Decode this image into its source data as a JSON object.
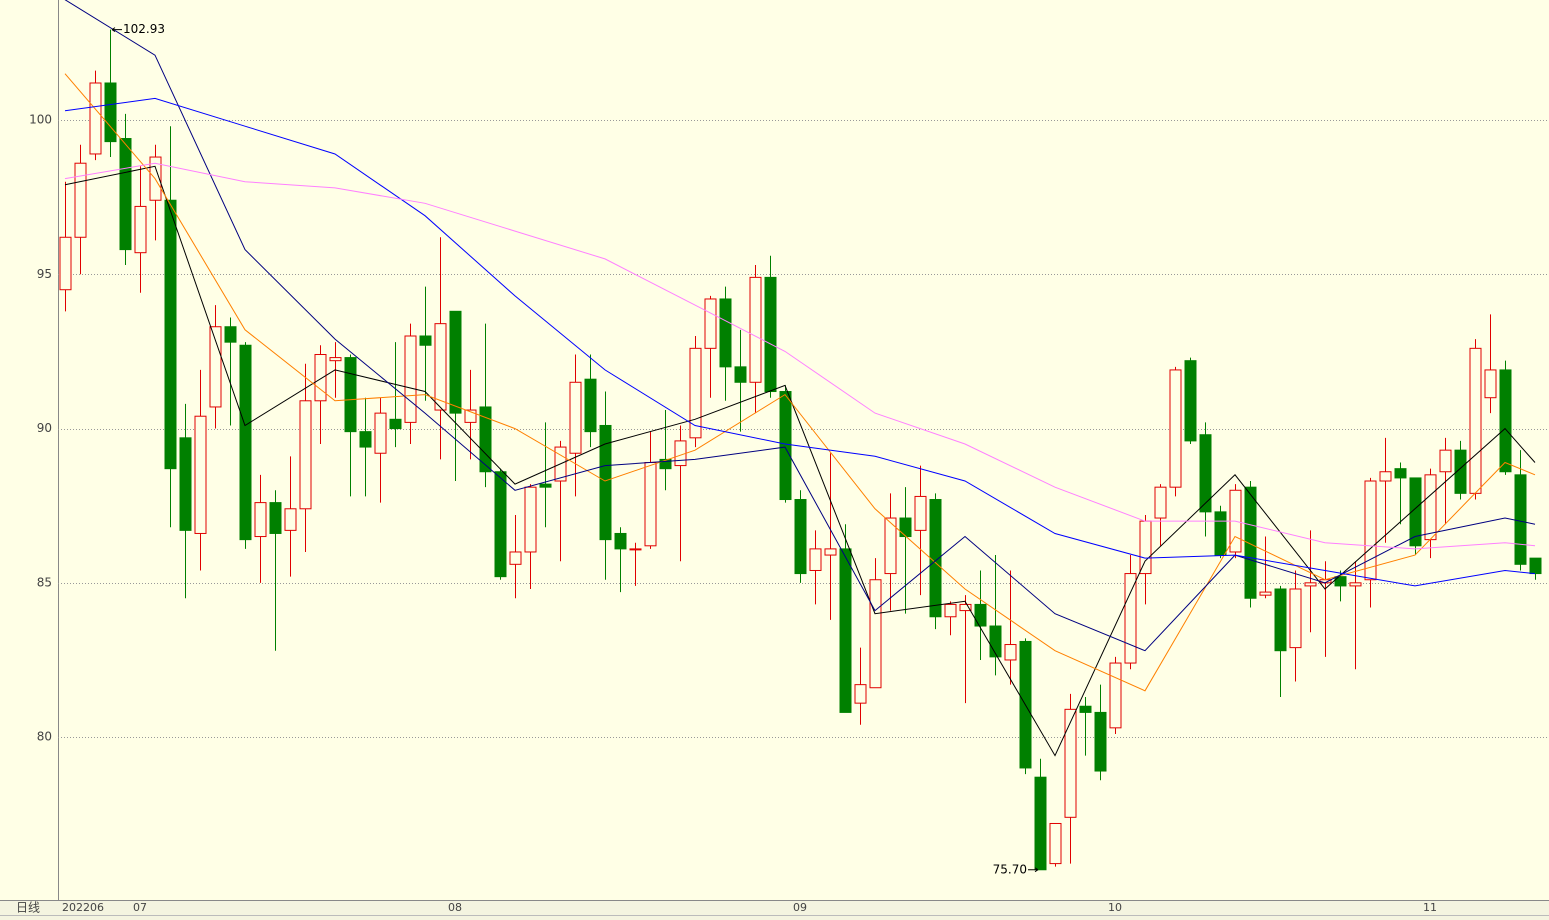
{
  "chart_data": {
    "type": "candlestick",
    "period_label": "日线",
    "categories": [
      "202206",
      null,
      null,
      null,
      null,
      "07",
      null,
      null,
      null,
      null,
      null,
      null,
      null,
      null,
      null,
      null,
      null,
      null,
      null,
      null,
      null,
      null,
      null,
      null,
      null,
      null,
      "08",
      null,
      null,
      null,
      null,
      null,
      null,
      null,
      null,
      null,
      null,
      null,
      null,
      null,
      null,
      null,
      null,
      null,
      null,
      null,
      null,
      null,
      null,
      "09",
      null,
      null,
      null,
      null,
      null,
      null,
      null,
      null,
      null,
      null,
      null,
      null,
      null,
      null,
      null,
      null,
      null,
      null,
      null,
      null,
      "10",
      null,
      null,
      null,
      null,
      null,
      null,
      null,
      null,
      null,
      null,
      null,
      null,
      null,
      null,
      null,
      null,
      null,
      null,
      null,
      null,
      "11",
      null,
      null,
      null,
      null,
      null,
      null,
      null
    ],
    "open": [
      94.5,
      96.2,
      98.9,
      101.2,
      99.4,
      95.7,
      97.4,
      97.4,
      89.7,
      86.6,
      90.7,
      93.3,
      92.7,
      86.5,
      87.6,
      86.7,
      87.4,
      90.9,
      92.2,
      92.3,
      89.9,
      89.2,
      90.3,
      90.2,
      93.0,
      90.6,
      93.8,
      90.2,
      90.7,
      88.6,
      85.6,
      86.0,
      88.2,
      88.3,
      89.2,
      91.6,
      90.1,
      86.6,
      86.1,
      86.2,
      89.0,
      88.8,
      89.7,
      92.6,
      94.2,
      92.0,
      91.5,
      94.9,
      91.2,
      87.7,
      85.4,
      85.9,
      86.1,
      81.1,
      81.6,
      85.3,
      87.1,
      86.7,
      87.7,
      83.9,
      84.1,
      84.3,
      83.6,
      82.5,
      83.1,
      78.7,
      75.9,
      77.4,
      81.0,
      80.8,
      80.3,
      82.4,
      85.3,
      87.1,
      88.1,
      92.2,
      89.8,
      87.3,
      86.0,
      88.1,
      84.6,
      84.8,
      82.9,
      84.9,
      85.0,
      85.2,
      84.9,
      85.1,
      88.3,
      88.7,
      88.4,
      86.4,
      88.6,
      89.3,
      87.9,
      91.0,
      91.9,
      88.5,
      85.8
    ],
    "high": [
      98.0,
      99.2,
      101.6,
      102.93,
      100.2,
      98.5,
      99.2,
      99.8,
      90.8,
      91.9,
      94.0,
      93.6,
      92.8,
      88.5,
      88.0,
      89.1,
      92.1,
      92.7,
      92.8,
      92.4,
      91.0,
      91.0,
      92.8,
      93.4,
      94.6,
      96.2,
      93.8,
      91.9,
      93.4,
      88.7,
      87.2,
      88.2,
      90.2,
      89.6,
      92.4,
      92.4,
      91.2,
      86.8,
      86.3,
      89.9,
      90.6,
      90.1,
      93.0,
      94.3,
      94.6,
      93.2,
      95.3,
      95.6,
      91.4,
      88.0,
      86.7,
      89.2,
      86.9,
      82.9,
      85.8,
      87.9,
      88.1,
      88.8,
      87.9,
      84.4,
      84.6,
      85.4,
      85.9,
      85.4,
      83.2,
      79.3,
      77.2,
      81.4,
      81.3,
      81.7,
      82.6,
      85.9,
      87.2,
      88.2,
      92.0,
      92.3,
      90.2,
      87.5,
      88.2,
      88.3,
      86.5,
      84.9,
      85.4,
      86.7,
      85.7,
      85.4,
      85.7,
      88.4,
      89.7,
      88.9,
      88.4,
      88.7,
      89.7,
      89.6,
      92.9,
      93.7,
      92.2,
      89.3,
      85.8
    ],
    "low": [
      93.8,
      95.0,
      98.7,
      98.8,
      95.3,
      94.4,
      96.1,
      86.8,
      84.5,
      85.4,
      90.0,
      90.1,
      86.1,
      85.0,
      82.8,
      85.2,
      86.0,
      89.5,
      91.0,
      87.8,
      87.8,
      87.6,
      89.4,
      89.5,
      90.9,
      89.0,
      88.3,
      89.0,
      88.1,
      85.1,
      84.5,
      84.8,
      86.8,
      85.7,
      87.8,
      89.4,
      85.1,
      84.7,
      84.9,
      86.1,
      88.0,
      85.7,
      89.4,
      91.0,
      90.9,
      89.9,
      90.5,
      91.0,
      87.6,
      85.0,
      84.3,
      83.8,
      80.8,
      80.4,
      81.6,
      84.1,
      84.0,
      84.6,
      83.5,
      83.3,
      81.1,
      82.5,
      82.0,
      81.7,
      78.8,
      75.7,
      75.8,
      75.9,
      79.4,
      78.6,
      80.1,
      82.2,
      84.3,
      86.2,
      87.8,
      89.5,
      86.5,
      85.8,
      85.8,
      84.2,
      84.5,
      81.3,
      81.8,
      83.4,
      82.6,
      84.4,
      82.2,
      84.2,
      86.3,
      86.9,
      85.9,
      85.8,
      86.9,
      87.7,
      87.7,
      90.5,
      88.5,
      85.4,
      85.1
    ],
    "close": [
      96.2,
      98.6,
      101.2,
      99.3,
      95.8,
      97.2,
      98.8,
      88.7,
      86.7,
      90.4,
      93.3,
      92.8,
      86.4,
      87.6,
      86.6,
      87.4,
      90.9,
      92.4,
      92.3,
      89.9,
      89.4,
      90.5,
      90.0,
      93.0,
      92.7,
      93.4,
      90.5,
      90.6,
      88.6,
      85.2,
      86.0,
      88.1,
      88.1,
      89.4,
      91.5,
      89.9,
      86.4,
      86.1,
      86.1,
      88.9,
      88.7,
      89.6,
      92.6,
      94.2,
      92.0,
      91.5,
      94.9,
      91.2,
      87.7,
      85.3,
      86.1,
      86.1,
      80.8,
      81.7,
      85.1,
      87.1,
      86.5,
      87.8,
      83.9,
      84.3,
      84.3,
      83.6,
      82.6,
      83.0,
      79.0,
      75.7,
      77.2,
      80.9,
      80.8,
      78.9,
      82.4,
      85.3,
      87.0,
      88.1,
      91.9,
      89.6,
      87.3,
      85.9,
      88.0,
      84.5,
      84.7,
      82.8,
      84.8,
      85.0,
      85.1,
      84.9,
      85.0,
      88.3,
      88.6,
      88.4,
      86.2,
      88.5,
      89.3,
      87.9,
      92.6,
      91.9,
      88.6,
      85.6,
      85.3
    ],
    "up_color": "#e00000",
    "down_color": "#008000",
    "lines": [
      {
        "color": "#000000",
        "x": [
          0,
          6,
          12,
          18,
          24,
          30,
          36,
          42,
          48,
          54,
          60,
          66,
          72,
          78,
          84,
          90,
          96,
          98
        ],
        "values": [
          97.9,
          98.5,
          90.1,
          91.9,
          91.2,
          88.2,
          89.5,
          90.3,
          91.4,
          84.0,
          84.4,
          79.4,
          85.7,
          88.5,
          84.8,
          87.4,
          90.0,
          88.9
        ]
      },
      {
        "color": "#ff8000",
        "x": [
          0,
          6,
          12,
          18,
          24,
          30,
          36,
          42,
          48,
          54,
          60,
          66,
          72,
          78,
          84,
          90,
          96,
          98
        ],
        "values": [
          101.5,
          98.1,
          93.2,
          90.9,
          91.1,
          90.0,
          88.3,
          89.3,
          91.1,
          87.4,
          84.8,
          82.8,
          81.5,
          86.5,
          85.1,
          85.9,
          88.9,
          88.5
        ]
      },
      {
        "color": "#000080",
        "x": [
          0,
          6,
          12,
          18,
          24,
          30,
          36,
          42,
          48,
          54,
          60,
          66,
          72,
          78,
          84,
          90,
          96,
          98
        ],
        "values": [
          103.9,
          102.1,
          95.8,
          92.9,
          90.5,
          88.0,
          88.8,
          89.0,
          89.4,
          84.1,
          86.5,
          84.0,
          82.8,
          85.9,
          85.0,
          86.5,
          87.1,
          86.9
        ]
      },
      {
        "color": "#0000ff",
        "x": [
          0,
          6,
          12,
          18,
          24,
          30,
          36,
          42,
          48,
          54,
          60,
          66,
          72,
          78,
          84,
          90,
          96,
          98
        ],
        "values": [
          100.3,
          100.7,
          99.8,
          98.9,
          96.9,
          94.3,
          91.9,
          90.1,
          89.5,
          89.1,
          88.3,
          86.6,
          85.8,
          85.9,
          85.4,
          84.9,
          85.4,
          85.3
        ]
      },
      {
        "color": "#ff80ff",
        "x": [
          0,
          6,
          12,
          18,
          24,
          30,
          36,
          42,
          48,
          54,
          60,
          66,
          72,
          78,
          84,
          90,
          96,
          98
        ],
        "values": [
          98.1,
          98.6,
          98.0,
          97.8,
          97.3,
          96.4,
          95.5,
          94.0,
          92.5,
          90.5,
          89.5,
          88.1,
          87.0,
          87.0,
          86.3,
          86.1,
          86.3,
          86.2
        ]
      }
    ],
    "annotations": [
      {
        "value": 102.93,
        "label": "102.93",
        "at": "high"
      },
      {
        "value": 75.7,
        "label": "75.70",
        "at": "low"
      }
    ],
    "ylim": [
      74.72,
      103.89
    ],
    "yticks": [
      80,
      85,
      90,
      95,
      100
    ],
    "grid": true
  }
}
